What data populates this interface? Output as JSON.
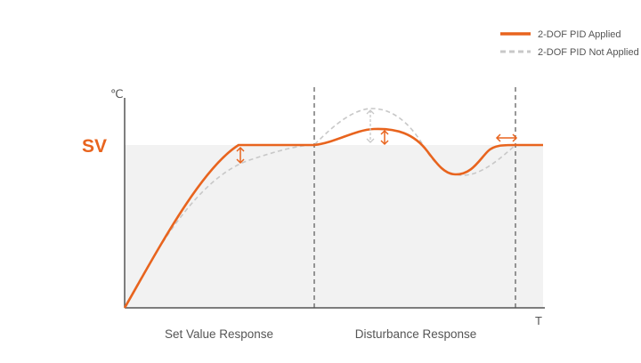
{
  "chart_data": {
    "type": "line",
    "x_label": "T",
    "y_label": "℃",
    "sv_label": "SV",
    "regions": [
      "Set Value Response",
      "Disturbance Response"
    ],
    "legend": {
      "position": "top-right",
      "entries": [
        {
          "name": "2-DOF PID Applied",
          "style": "solid",
          "color": "#E8641E"
        },
        {
          "name": "2-DOF PID Not Applied",
          "style": "dashed",
          "color": "#C8C8C8"
        }
      ]
    },
    "series": [
      {
        "name": "2-DOF PID Applied",
        "color": "#E8641E",
        "style": "solid"
      },
      {
        "name": "2-DOF PID Not Applied",
        "color": "#C8C8C8",
        "style": "dashed"
      }
    ],
    "colors": {
      "accent": "#E8641E",
      "reference": "#C8C8C8",
      "axis": "#666666",
      "band": "#F2F2F2",
      "text": "#555555"
    }
  }
}
